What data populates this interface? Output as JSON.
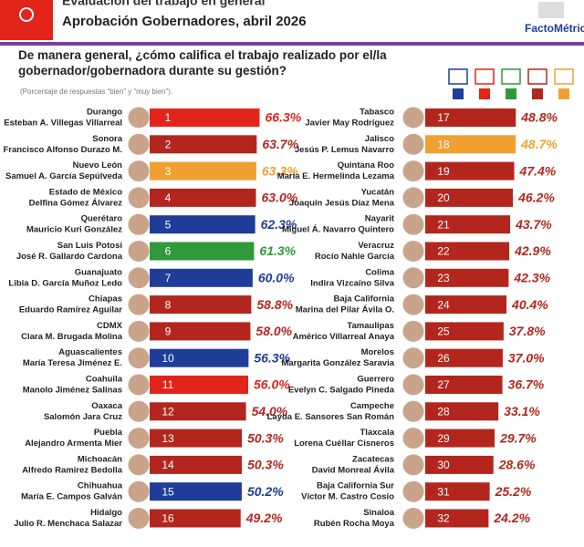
{
  "chart_data": {
    "type": "bar",
    "header": "Evaluación del trabajo en general",
    "title": "Aprobación Gobernadores, abril 2026",
    "brand": "FactoMétrica",
    "question": "De manera general, ¿cómo califica el trabajo realizado por el/la gobernador/gobernadora durante su gestión?",
    "note": "(Porcentaje de respuestas “bien” y “muy bien”).",
    "party_colors": [
      "#1f3d99",
      "#e3241b",
      "#2e9a3a",
      "#b3261e",
      "#f0a030"
    ],
    "xlim": [
      0,
      70
    ],
    "ranks": [
      1,
      2,
      3,
      4,
      5,
      6,
      7,
      8,
      9,
      10,
      11,
      12,
      13,
      14,
      15,
      16,
      17,
      18,
      19,
      20,
      21,
      22,
      23,
      24,
      25,
      26,
      27,
      28,
      29,
      30,
      31,
      32
    ],
    "categories": [
      "Durango",
      "Sonora",
      "Nuevo León",
      "Estado de México",
      "Querétaro",
      "San Luis Potosí",
      "Guanajuato",
      "Chiapas",
      "CDMX",
      "Aguascalientes",
      "Coahuila",
      "Oaxaca",
      "Puebla",
      "Michoacán",
      "Chihuahua",
      "Hidalgo",
      "Tabasco",
      "Jalisco",
      "Quintana Roo",
      "Yucatán",
      "Nayarit",
      "Veracruz",
      "Colima",
      "Baja California",
      "Tamaulipas",
      "Morelos",
      "Guerrero",
      "Campeche",
      "Tlaxcala",
      "Zacatecas",
      "Baja California Sur",
      "Sinaloa"
    ],
    "names": [
      "Esteban A. Villegas Villarreal",
      "Francisco Alfonso Durazo M.",
      "Samuel A. García Sepúlveda",
      "Delfina Gómez Álvarez",
      "Mauricio Kuri González",
      "José R. Gallardo Cardona",
      "Libia D. García Muñoz Ledo",
      "Eduardo Ramírez Aguilar",
      "Clara M. Brugada Molina",
      "María Teresa Jiménez E.",
      "Manolo Jiménez Salinas",
      "Salomón Jara Cruz",
      "Alejandro Armenta Mier",
      "Alfredo Ramírez Bedolla",
      "María E. Campos Galván",
      "Julio R. Menchaca Salazar",
      "Javier May Rodríguez",
      "Jesús P. Lemus Navarro",
      "María E. Hermelinda Lezama",
      "Joaquín Jesús Díaz Mena",
      "Miguel Á. Navarro Quintero",
      "Rocío Nahle García",
      "Indira Vizcaíno Silva",
      "Marina del Pilar Ávila O.",
      "Américo Villarreal Anaya",
      "Margarita González Saravia",
      "Evelyn C. Salgado Pineda",
      "Layda E. Sansores San Román",
      "Lorena Cuéllar Cisneros",
      "David Monreal Ávila",
      "Víctor M. Castro Cosío",
      "Rubén Rocha Moya"
    ],
    "values": [
      66.3,
      63.7,
      63.3,
      63.0,
      62.3,
      61.3,
      60.0,
      58.8,
      58.0,
      56.3,
      56.0,
      54.0,
      50.3,
      50.3,
      50.2,
      49.2,
      48.8,
      48.7,
      47.4,
      46.2,
      43.7,
      42.9,
      42.3,
      40.4,
      37.8,
      37.0,
      36.7,
      33.1,
      29.7,
      28.6,
      25.2,
      24.2
    ],
    "value_labels": [
      "66.3%",
      "63.7%",
      "63.3%",
      "63.0%",
      "62.3%",
      "61.3%",
      "60.0%",
      "58.8%",
      "58.0%",
      "56.3%",
      "56.0%",
      "54.0%",
      "50.3%",
      "50.3%",
      "50.2%",
      "49.2%",
      "48.8%",
      "48.7%",
      "47.4%",
      "46.2%",
      "43.7%",
      "42.9%",
      "42.3%",
      "40.4%",
      "37.8%",
      "37.0%",
      "36.7%",
      "33.1%",
      "29.7%",
      "28.6%",
      "25.2%",
      "24.2%"
    ],
    "colors": [
      "#e3241b",
      "#b3261e",
      "#f0a030",
      "#b3261e",
      "#1f3d99",
      "#2e9a3a",
      "#1f3d99",
      "#b3261e",
      "#b3261e",
      "#1f3d99",
      "#e3241b",
      "#b3261e",
      "#b3261e",
      "#b3261e",
      "#1f3d99",
      "#b3261e",
      "#b3261e",
      "#f0a030",
      "#b3261e",
      "#b3261e",
      "#b3261e",
      "#b3261e",
      "#b3261e",
      "#b3261e",
      "#b3261e",
      "#b3261e",
      "#b3261e",
      "#b3261e",
      "#b3261e",
      "#b3261e",
      "#b3261e",
      "#b3261e"
    ]
  }
}
